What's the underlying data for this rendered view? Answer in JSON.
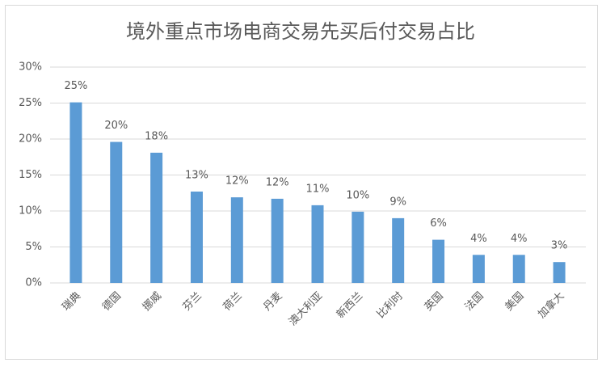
{
  "chart_data": {
    "type": "bar",
    "title": "境外重点市场电商交易先买后付交易占比",
    "categories": [
      "瑞典",
      "德国",
      "挪威",
      "芬兰",
      "荷兰",
      "丹麦",
      "澳大利亚",
      "新西兰",
      "比利时",
      "英国",
      "法国",
      "美国",
      "加拿大"
    ],
    "values": [
      25.1,
      19.6,
      18.1,
      12.7,
      11.9,
      11.7,
      10.8,
      9.9,
      9.0,
      6.0,
      3.9,
      3.9,
      2.9
    ],
    "value_labels": [
      "25%",
      "20%",
      "18%",
      "13%",
      "12%",
      "12%",
      "11%",
      "10%",
      "9%",
      "6%",
      "4%",
      "4%",
      "3%"
    ],
    "color": "#5b9bd5",
    "ylim": [
      0,
      30
    ],
    "yticks": [
      {
        "value": 0,
        "label": "0%"
      },
      {
        "value": 5,
        "label": "5%"
      },
      {
        "value": 10,
        "label": "10%"
      },
      {
        "value": 15,
        "label": "15%"
      },
      {
        "value": 20,
        "label": "20%"
      },
      {
        "value": 25,
        "label": "25%"
      },
      {
        "value": 30,
        "label": "30%"
      }
    ],
    "grid": true
  }
}
